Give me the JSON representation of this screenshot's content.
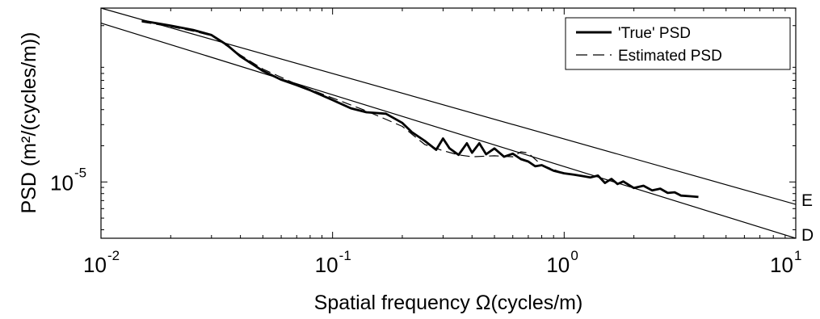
{
  "chart_data": {
    "type": "line",
    "title": "",
    "xlabel": "Spatial frequency Ω(cycles/m)",
    "ylabel": "PSD (m²/(cycles/m))",
    "xscale": "log",
    "yscale": "log",
    "xlim": [
      0.01,
      10
    ],
    "ylim": [
      3.4e-06,
      0.00028
    ],
    "grid": false,
    "legend_position": "top-right",
    "x_ticks": [
      {
        "base": "10",
        "exp": "-2",
        "value": 0.01
      },
      {
        "base": "10",
        "exp": "-1",
        "value": 0.1
      },
      {
        "base": "10",
        "exp": "0",
        "value": 1
      },
      {
        "base": "10",
        "exp": "1",
        "value": 10
      }
    ],
    "y_ticks": [
      {
        "base": "10",
        "exp": "-5",
        "value": 1e-05
      }
    ],
    "series": [
      {
        "name": "'True' PSD",
        "style": "solid-thick",
        "x": [
          0.015,
          0.02,
          0.025,
          0.03,
          0.035,
          0.04,
          0.05,
          0.06,
          0.07,
          0.08,
          0.1,
          0.12,
          0.14,
          0.17,
          0.2,
          0.22,
          0.25,
          0.28,
          0.3,
          0.32,
          0.35,
          0.38,
          0.4,
          0.43,
          0.46,
          0.5,
          0.55,
          0.6,
          0.65,
          0.7,
          0.75,
          0.8,
          0.9,
          1.0,
          1.1,
          1.2,
          1.3,
          1.4,
          1.5,
          1.6,
          1.7,
          1.8,
          2.0,
          2.2,
          2.4,
          2.6,
          2.8,
          3.0,
          3.2,
          3.5,
          3.8
        ],
        "y": [
          0.00022,
          0.0002,
          0.000184,
          0.000167,
          0.000138,
          0.000111,
          8.4e-05,
          7.1e-05,
          6.4e-05,
          5.8e-05,
          4.8e-05,
          4.1e-05,
          3.8e-05,
          3.7e-05,
          3.1e-05,
          2.6e-05,
          2.2e-05,
          1.85e-05,
          2.3e-05,
          1.9e-05,
          1.68e-05,
          2.1e-05,
          1.75e-05,
          2.1e-05,
          1.7e-05,
          1.9e-05,
          1.62e-05,
          1.72e-05,
          1.55e-05,
          1.48e-05,
          1.35e-05,
          1.38e-05,
          1.24e-05,
          1.18e-05,
          1.15e-05,
          1.12e-05,
          1.09e-05,
          1.13e-05,
          9.8e-06,
          1.06e-05,
          9.6e-06,
          1.01e-05,
          8.9e-06,
          9.3e-06,
          8.5e-06,
          8.8e-06,
          8.1e-06,
          8.2e-06,
          7.7e-06,
          7.6e-06,
          7.5e-06
        ]
      },
      {
        "name": "Estimated PSD",
        "style": "dashed",
        "x": [
          0.015,
          0.02,
          0.025,
          0.03,
          0.04,
          0.05,
          0.07,
          0.1,
          0.14,
          0.2,
          0.25,
          0.3,
          0.35,
          0.4,
          0.5,
          0.6,
          0.65,
          0.7,
          0.8,
          1.0
        ],
        "y": [
          0.000215,
          0.000196,
          0.00018,
          0.000165,
          0.000114,
          8.7e-05,
          6.5e-05,
          5e-05,
          3.9e-05,
          2.9e-05,
          2.05e-05,
          1.82e-05,
          1.68e-05,
          1.62e-05,
          1.65e-05,
          1.62e-05,
          1.78e-05,
          1.74e-05,
          1.38e-05,
          1.18e-05
        ]
      },
      {
        "name": "E",
        "style": "thin",
        "x": [
          0.01,
          10
        ],
        "y": [
          0.00028,
          6.5e-06
        ]
      },
      {
        "name": "D",
        "style": "thin",
        "x": [
          0.01,
          10
        ],
        "y": [
          0.00021,
          3.4e-06
        ]
      }
    ]
  }
}
